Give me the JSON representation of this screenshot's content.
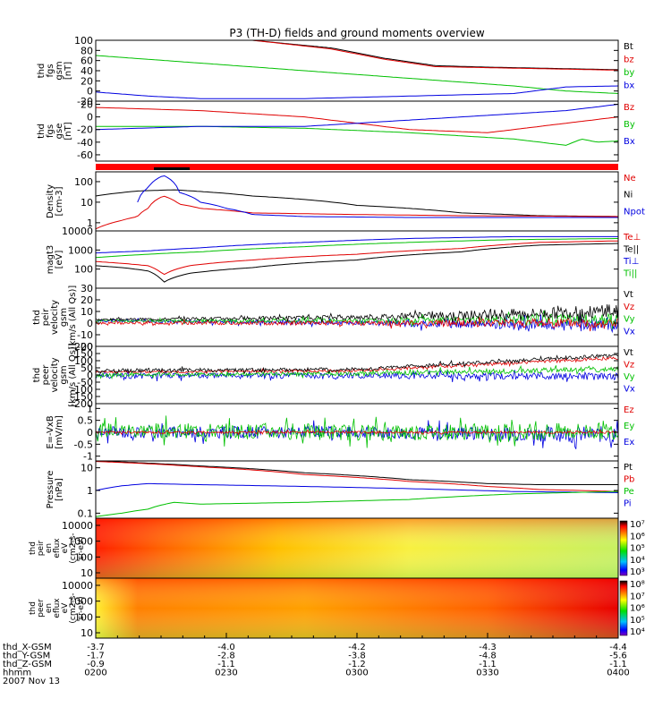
{
  "chart_data": {
    "type": "line",
    "title": "P3 (TH-D) fields and ground moments overview",
    "panels": [
      {
        "id": "fgs_gsm",
        "ylabel": [
          "thd",
          "fgs",
          "gsm",
          "[nT]"
        ],
        "ylim": [
          -20,
          100
        ],
        "yticks": [
          100,
          80,
          60,
          40,
          20,
          0,
          -20
        ],
        "legend": [
          {
            "name": "Bt",
            "color": "#000000"
          },
          {
            "name": "bz",
            "color": "#e00000"
          },
          {
            "name": "by",
            "color": "#00c000"
          },
          {
            "name": "bx",
            "color": "#0000e0"
          }
        ],
        "series": [
          {
            "name": "Bt",
            "color": "#000000",
            "t": [
              0.3,
              0.45,
              0.55,
              0.65,
              0.75,
              0.85,
              1.0
            ],
            "y": [
              100,
              85,
              65,
              50,
              47,
              45,
              42
            ]
          },
          {
            "name": "bz",
            "color": "#e00000",
            "t": [
              0.3,
              0.45,
              0.55,
              0.65,
              0.75,
              0.85,
              1.0
            ],
            "y": [
              100,
              83,
              63,
              48,
              46,
              44,
              41
            ]
          },
          {
            "name": "by",
            "color": "#00c000",
            "t": [
              0,
              0.2,
              0.4,
              0.6,
              0.8,
              0.9,
              1.0
            ],
            "y": [
              70,
              55,
              40,
              25,
              10,
              0,
              -5
            ]
          },
          {
            "name": "bx",
            "color": "#0000e0",
            "t": [
              0,
              0.1,
              0.2,
              0.4,
              0.6,
              0.8,
              0.9,
              1.0
            ],
            "y": [
              -2,
              -10,
              -15,
              -15,
              -10,
              -5,
              8,
              10
            ]
          }
        ]
      },
      {
        "id": "fgs_gse",
        "ylabel": [
          "thd",
          "fgs",
          "gse",
          "[nT]"
        ],
        "ylim": [
          -70,
          25
        ],
        "yticks": [
          20,
          0,
          -20,
          -40,
          -60
        ],
        "legend": [
          {
            "name": "Bz",
            "color": "#e00000"
          },
          {
            "name": "By",
            "color": "#00c000"
          },
          {
            "name": "Bx",
            "color": "#0000e0"
          }
        ],
        "series": [
          {
            "name": "Bz",
            "color": "#e00000",
            "t": [
              0,
              0.2,
              0.4,
              0.6,
              0.75,
              0.9,
              1.0
            ],
            "y": [
              15,
              10,
              0,
              -20,
              -25,
              -10,
              0
            ]
          },
          {
            "name": "By",
            "color": "#00c000",
            "t": [
              0,
              0.2,
              0.4,
              0.6,
              0.8,
              0.9,
              0.93,
              0.96,
              1.0
            ],
            "y": [
              -15,
              -15,
              -18,
              -25,
              -35,
              -45,
              -35,
              -40,
              -38
            ]
          },
          {
            "name": "Bx",
            "color": "#0000e0",
            "t": [
              0,
              0.2,
              0.4,
              0.6,
              0.8,
              0.9,
              1.0
            ],
            "y": [
              -20,
              -15,
              -15,
              -5,
              5,
              10,
              20
            ]
          }
        ]
      },
      {
        "id": "density",
        "ylabel": [
          "Density",
          "[cm-3]"
        ],
        "log": true,
        "ylim": [
          0.4,
          300
        ],
        "yticks": [
          100,
          10,
          1
        ],
        "legend": [
          {
            "name": "Ne",
            "color": "#e00000"
          },
          {
            "name": "Ni",
            "color": "#000000"
          },
          {
            "name": "Npot",
            "color": "#0000e0"
          }
        ],
        "series": [
          {
            "name": "Ni",
            "color": "#000000",
            "t": [
              0,
              0.08,
              0.15,
              0.3,
              0.5,
              0.7,
              0.85,
              1.0
            ],
            "y": [
              20,
              35,
              40,
              20,
              7,
              3,
              2.2,
              2
            ]
          },
          {
            "name": "Ne",
            "color": "#e00000",
            "t": [
              0,
              0.02,
              0.05,
              0.08,
              0.1,
              0.13,
              0.16,
              0.2,
              0.3,
              0.5,
              0.7,
              1.0
            ],
            "y": [
              0.5,
              0.8,
              1.3,
              2,
              5,
              20,
              8,
              5,
              3,
              2.5,
              2.2,
              2
            ]
          },
          {
            "name": "Npot",
            "color": "#0000e0",
            "t": [
              0.08,
              0.1,
              0.13,
              0.16,
              0.2,
              0.25,
              0.3,
              0.4,
              0.6,
              1.0
            ],
            "y": [
              10,
              50,
              200,
              30,
              10,
              5,
              2.5,
              2,
              1.8,
              1.8
            ]
          }
        ]
      },
      {
        "id": "temperature",
        "ylabel": [
          "magt3",
          "[eV]"
        ],
        "log": true,
        "ylim": [
          10,
          10000
        ],
        "yticks": [
          10000,
          1000,
          100
        ],
        "legend": [
          {
            "name": "Te⊥",
            "color": "#e00000"
          },
          {
            "name": "Te||",
            "color": "#000000"
          },
          {
            "name": "Ti⊥",
            "color": "#0000e0"
          },
          {
            "name": "Ti||",
            "color": "#00c000"
          }
        ],
        "series": [
          {
            "name": "Ti⊥",
            "color": "#0000e0",
            "t": [
              0,
              0.05,
              0.1,
              0.2,
              0.4,
              0.6,
              0.8,
              1.0
            ],
            "y": [
              700,
              800,
              900,
              1300,
              2500,
              4000,
              5000,
              5000
            ]
          },
          {
            "name": "Ti||",
            "color": "#00c000",
            "t": [
              0,
              0.05,
              0.1,
              0.2,
              0.4,
              0.6,
              0.8,
              1.0
            ],
            "y": [
              400,
              500,
              600,
              800,
              1500,
              2500,
              3500,
              4000
            ]
          },
          {
            "name": "Te⊥",
            "color": "#e00000",
            "t": [
              0,
              0.05,
              0.1,
              0.13,
              0.18,
              0.3,
              0.5,
              0.7,
              0.85,
              1.0
            ],
            "y": [
              250,
              200,
              150,
              50,
              150,
              300,
              600,
              1200,
              2500,
              3000
            ]
          },
          {
            "name": "Te||",
            "color": "#000000",
            "t": [
              0,
              0.05,
              0.1,
              0.13,
              0.18,
              0.3,
              0.5,
              0.7,
              0.85,
              1.0
            ],
            "y": [
              150,
              120,
              80,
              20,
              60,
              120,
              300,
              800,
              1800,
              2200
            ]
          }
        ]
      },
      {
        "id": "peir_velocity",
        "ylabel": [
          "thd",
          "peir",
          "velocity",
          "gsm",
          "[km/s (All Qs)]"
        ],
        "ylim": [
          -20,
          30
        ],
        "yticks": [
          30,
          20,
          10,
          0,
          -10,
          -20
        ],
        "legend": [
          {
            "name": "Vt",
            "color": "#000000"
          },
          {
            "name": "Vz",
            "color": "#e00000"
          },
          {
            "name": "Vy",
            "color": "#00c000"
          },
          {
            "name": "Vx",
            "color": "#0000e0"
          }
        ],
        "series": [
          {
            "name": "Vx",
            "color": "#0000e0",
            "t": [
              0,
              0.5,
              1.0
            ],
            "y": [
              2,
              0,
              -2
            ],
            "noise": [
              1,
              2,
              6
            ],
            "seed": 11
          },
          {
            "name": "Vy",
            "color": "#00c000",
            "t": [
              0,
              0.5,
              1.0
            ],
            "y": [
              2,
              2,
              3
            ],
            "noise": [
              1,
              2,
              6
            ],
            "seed": 12
          },
          {
            "name": "Vz",
            "color": "#e00000",
            "t": [
              0,
              0.5,
              1.0
            ],
            "y": [
              0,
              0,
              0
            ],
            "noise": [
              1,
              2,
              5
            ],
            "seed": 13
          },
          {
            "name": "Vt",
            "color": "#000000",
            "t": [
              0,
              0.5,
              1.0
            ],
            "y": [
              3,
              5,
              10
            ],
            "noise": [
              0.8,
              2,
              6
            ],
            "seed": 14
          }
        ]
      },
      {
        "id": "peer_velocity",
        "ylabel": [
          "thd",
          "peer",
          "velocity",
          "gsm",
          "[km/s (All Qs)]"
        ],
        "ylim": [
          -200,
          200
        ],
        "yticks": [
          200,
          150,
          100,
          50,
          0,
          -50,
          -100,
          -150,
          -200
        ],
        "legend": [
          {
            "name": "Vt",
            "color": "#000000"
          },
          {
            "name": "Vz",
            "color": "#e00000"
          },
          {
            "name": "Vy",
            "color": "#00c000"
          },
          {
            "name": "Vx",
            "color": "#0000e0"
          }
        ],
        "series": [
          {
            "name": "Vx",
            "color": "#0000e0",
            "t": [
              0,
              0.5,
              1.0
            ],
            "y": [
              -5,
              -5,
              -10
            ],
            "noise": [
              20,
              20,
              25
            ],
            "seed": 21
          },
          {
            "name": "Vy",
            "color": "#00c000",
            "t": [
              0,
              0.5,
              1.0
            ],
            "y": [
              0,
              10,
              40
            ],
            "noise": [
              12,
              15,
              20
            ],
            "seed": 22
          },
          {
            "name": "Vz",
            "color": "#e00000",
            "t": [
              0,
              0.5,
              1.0
            ],
            "y": [
              20,
              30,
              120
            ],
            "noise": [
              8,
              10,
              12
            ],
            "seed": 23
          },
          {
            "name": "Vt",
            "color": "#000000",
            "t": [
              0,
              0.5,
              1.0
            ],
            "y": [
              30,
              40,
              140
            ],
            "noise": [
              15,
              12,
              12
            ],
            "seed": 24
          }
        ]
      },
      {
        "id": "efield",
        "ylabel": [
          "E=-VxB",
          "[mV/m]"
        ],
        "ylim": [
          -1.2,
          1.2
        ],
        "yticks": [
          1.0,
          0.5,
          0.0,
          -0.5,
          -1.0
        ],
        "legend": [
          {
            "name": "Ez",
            "color": "#e00000"
          },
          {
            "name": "Ey",
            "color": "#00c000"
          },
          {
            "name": "Ex",
            "color": "#0000e0"
          }
        ],
        "series": [
          {
            "name": "Ex",
            "color": "#0000e0",
            "t": [
              0,
              0.5,
              1.0
            ],
            "y": [
              0,
              0,
              -0.1
            ],
            "noise": [
              0.25,
              0.25,
              0.35
            ],
            "seed": 31
          },
          {
            "name": "Ey",
            "color": "#00c000",
            "t": [
              0,
              0.5,
              1.0
            ],
            "y": [
              0.1,
              0,
              0.05
            ],
            "noise": [
              0.3,
              0.35,
              0.35
            ],
            "seed": 32
          },
          {
            "name": "Ez",
            "color": "#e00000",
            "t": [
              0,
              0.5,
              1.0
            ],
            "y": [
              0,
              0,
              0
            ],
            "noise": [
              0.05,
              0.05,
              0.05
            ],
            "seed": 33
          }
        ]
      },
      {
        "id": "pressure",
        "ylabel": [
          "Pressure",
          "[nPa]"
        ],
        "log": true,
        "ylim": [
          0.06,
          20
        ],
        "yticks": [
          10.0,
          1.0,
          0.1
        ],
        "legend": [
          {
            "name": "Pt",
            "color": "#000000"
          },
          {
            "name": "Pb",
            "color": "#e00000"
          },
          {
            "name": "Pe",
            "color": "#00c000"
          },
          {
            "name": "Pi",
            "color": "#0000e0"
          }
        ],
        "series": [
          {
            "name": "Pt",
            "color": "#000000",
            "t": [
              0,
              0.2,
              0.4,
              0.6,
              0.75,
              0.85,
              1.0
            ],
            "y": [
              20,
              12,
              6,
              3,
              2,
              1.8,
              1.8
            ]
          },
          {
            "name": "Pb",
            "color": "#e00000",
            "t": [
              0,
              0.2,
              0.4,
              0.6,
              0.75,
              0.85,
              1.0
            ],
            "y": [
              19,
              11,
              5,
              2.5,
              1.5,
              1.1,
              0.9
            ]
          },
          {
            "name": "Pi",
            "color": "#0000e0",
            "t": [
              0,
              0.05,
              0.1,
              0.2,
              0.4,
              0.6,
              0.8,
              1.0
            ],
            "y": [
              1.0,
              1.6,
              2,
              1.8,
              1.5,
              1.2,
              0.9,
              0.8
            ]
          },
          {
            "name": "Pe",
            "color": "#00c000",
            "t": [
              0,
              0.05,
              0.1,
              0.15,
              0.2,
              0.4,
              0.6,
              0.8,
              1.0
            ],
            "y": [
              0.07,
              0.1,
              0.15,
              0.3,
              0.25,
              0.3,
              0.4,
              0.7,
              0.9
            ]
          }
        ]
      }
    ],
    "spectrograms": [
      {
        "id": "peir_en_eflux",
        "ylabel": [
          "thd",
          "peir",
          "en",
          "eflux",
          "eV",
          "(cm2-s-",
          "sr-eV)"
        ],
        "yticks": [
          "10000",
          "1000",
          "100",
          "10"
        ],
        "colorbar_labels": [
          "10⁷",
          "10⁶",
          "10⁵",
          "10⁴",
          "10³"
        ]
      },
      {
        "id": "peer_en_eflux",
        "ylabel": [
          "thd",
          "peer",
          "en",
          "eflux",
          "eV",
          "(cm2-s-",
          "sr-eV)"
        ],
        "yticks": [
          "10000",
          "1000",
          "100",
          "10"
        ],
        "colorbar_labels": [
          "10⁸",
          "10⁷",
          "10⁶",
          "10⁵",
          "10⁴"
        ]
      }
    ],
    "xaxis": {
      "ticks": [
        "0200",
        "0230",
        "0300",
        "0330",
        "0400"
      ],
      "rows": [
        {
          "label": "thd_X-GSM",
          "values": [
            "-3.7",
            "-4.0",
            "-4.2",
            "-4.3",
            "-4.4"
          ]
        },
        {
          "label": "thd_Y-GSM",
          "values": [
            "-1.7",
            "-2.8",
            "-3.8",
            "-4.8",
            "-5.6"
          ]
        },
        {
          "label": "thd_Z-GSM",
          "values": [
            "-0.9",
            "-1.1",
            "-1.2",
            "-1.1",
            "-1.1"
          ]
        },
        {
          "label": "hhmm",
          "values": [
            "0200",
            "0230",
            "0300",
            "0330",
            "0400"
          ]
        }
      ],
      "date": "2007 Nov 13"
    }
  },
  "colors": {
    "axis": "#000000",
    "flag": "#ff0000"
  }
}
